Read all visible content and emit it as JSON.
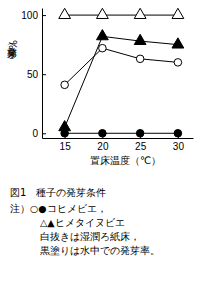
{
  "chart_data": {
    "type": "line",
    "title": "図1　種子の発芽条件",
    "x_label": "置床温度（℃）",
    "y_label": "発芽率（%）",
    "annotations": [
      "注）○●コヒメビエ，",
      "△▲ヒメタイヌビエ",
      "白抜きは湿潤ろ紙床，",
      "黒塗りは水中での発芽率。"
    ],
    "x": [
      15,
      20,
      25,
      30
    ],
    "xlim": [
      12,
      32
    ],
    "xticks": [
      15,
      20,
      25,
      30
    ],
    "ylim": [
      -4,
      106
    ],
    "yticks": [
      0,
      50,
      100
    ],
    "grid": false,
    "series": [
      {
        "color": "#000000",
        "marker": "circle-open",
        "values": [
          41,
          72,
          63,
          60
        ]
      },
      {
        "color": "#000000",
        "marker": "circle",
        "values": [
          0,
          0,
          0,
          0
        ]
      },
      {
        "color": "#000000",
        "marker": "triangle-open",
        "values": [
          100,
          100,
          100,
          100
        ]
      },
      {
        "color": "#000000",
        "marker": "triangle",
        "values": [
          5,
          82,
          78,
          75
        ]
      }
    ]
  }
}
